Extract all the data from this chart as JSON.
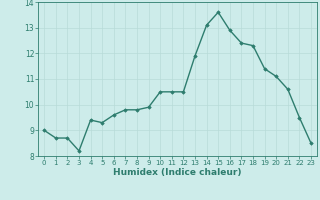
{
  "x": [
    0,
    1,
    2,
    3,
    4,
    5,
    6,
    7,
    8,
    9,
    10,
    11,
    12,
    13,
    14,
    15,
    16,
    17,
    18,
    19,
    20,
    21,
    22,
    23
  ],
  "y": [
    9.0,
    8.7,
    8.7,
    8.2,
    9.4,
    9.3,
    9.6,
    9.8,
    9.8,
    9.9,
    10.5,
    10.5,
    10.5,
    11.9,
    13.1,
    13.6,
    12.9,
    12.4,
    12.3,
    11.4,
    11.1,
    10.6,
    9.5,
    8.5
  ],
  "line_color": "#2e7d6e",
  "marker": "D",
  "marker_size": 1.8,
  "line_width": 1.0,
  "background_color": "#cdecea",
  "grid_color": "#b8dbd8",
  "xlabel": "Humidex (Indice chaleur)",
  "xlabel_fontsize": 6.5,
  "tick_color": "#2e7d6e",
  "ylim": [
    8,
    14
  ],
  "yticks": [
    8,
    9,
    10,
    11,
    12,
    13,
    14
  ],
  "xlim": [
    -0.5,
    23.5
  ],
  "xticks": [
    0,
    1,
    2,
    3,
    4,
    5,
    6,
    7,
    8,
    9,
    10,
    11,
    12,
    13,
    14,
    15,
    16,
    17,
    18,
    19,
    20,
    21,
    22,
    23
  ],
  "tick_fontsize": 5.0,
  "ytick_fontsize": 5.5
}
